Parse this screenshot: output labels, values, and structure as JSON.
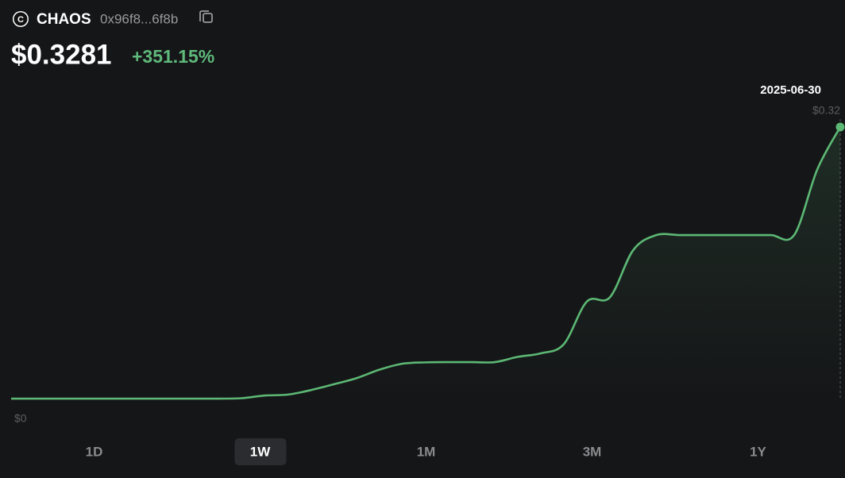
{
  "header": {
    "icon_letter": "C",
    "symbol": "CHAOS",
    "address": "0x96f8...6f8b",
    "price": "$0.3281",
    "change": "+351.15%"
  },
  "chart_data": {
    "type": "line",
    "color": "#5cb874",
    "grid": false,
    "categories": [
      null,
      null,
      null,
      null,
      null,
      null,
      null,
      null,
      null,
      null,
      null,
      null,
      null,
      null,
      null,
      null,
      null,
      null,
      null,
      null,
      null,
      null,
      null,
      null,
      null,
      null,
      null,
      null,
      null,
      null,
      null,
      null,
      null,
      null,
      null,
      null,
      "2025-06-30"
    ],
    "values": [
      0.0009,
      0.0009,
      0.0009,
      0.0009,
      0.0009,
      0.0009,
      0.0009,
      0.0009,
      0.0009,
      0.0009,
      0.0014,
      0.0045,
      0.0056,
      0.0108,
      0.0177,
      0.025,
      0.035,
      0.042,
      0.0435,
      0.0438,
      0.0438,
      0.0438,
      0.05,
      0.0541,
      0.065,
      0.115,
      0.12,
      0.175,
      0.193,
      0.1931,
      0.1931,
      0.1931,
      0.1931,
      0.1931,
      0.1931,
      0.27,
      0.32
    ],
    "ylim": [
      0,
      0.32
    ],
    "yticks": [
      {
        "value": 0,
        "label": "$0"
      },
      {
        "value": 0.32,
        "label": "$0.32"
      }
    ]
  },
  "tabs": [
    "1D",
    "1W",
    "1M",
    "3M",
    "1Y"
  ],
  "selected_tab_index": 1
}
